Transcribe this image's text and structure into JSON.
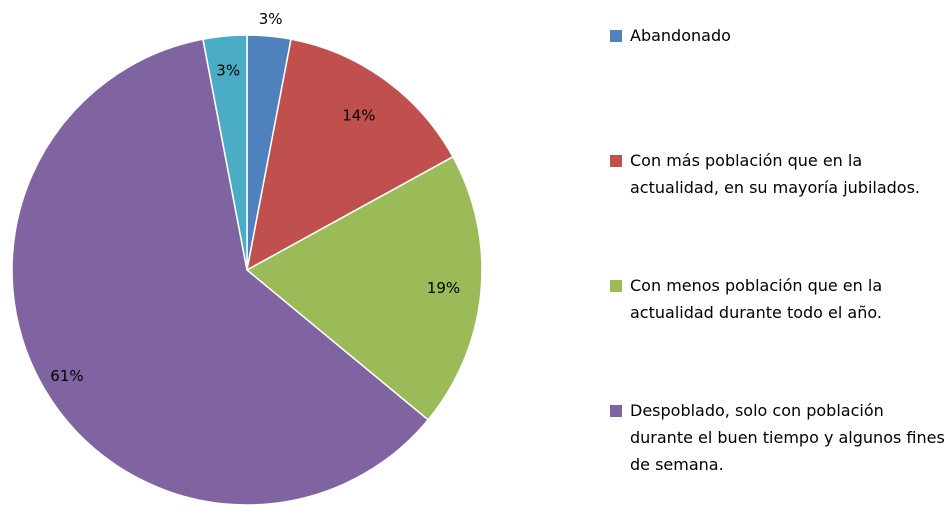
{
  "chart_data": {
    "type": "pie",
    "categories": [
      "Abandonado",
      "Con más población que en la actualidad, en su mayoría jubilados.",
      "Con menos población que en la actualidad durante todo el año.",
      "Despoblado, solo con población durante el buen tiempo y algunos fines de semana.",
      null
    ],
    "values": [
      3,
      14,
      19,
      61,
      3
    ],
    "value_labels": [
      "3%",
      "14%",
      "19%",
      "61%",
      "3%"
    ],
    "colors": [
      "#4f81bd",
      "#c0504d",
      "#9bbb59",
      "#8064a2",
      "#4bacc6"
    ],
    "legend": "right"
  }
}
